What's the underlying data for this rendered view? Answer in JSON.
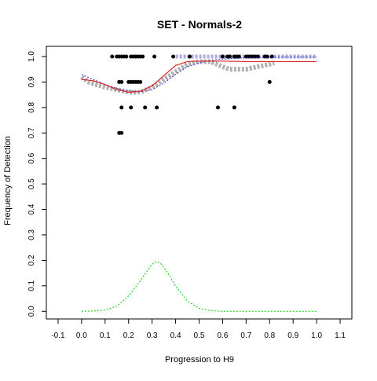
{
  "chart_data": {
    "type": "scatter",
    "title": "SET - Normals-2",
    "xlabel": "Progression to H9",
    "ylabel": "Frequency of Detection",
    "xlim": [
      -0.15,
      1.15
    ],
    "ylim": [
      -0.03,
      1.04
    ],
    "xticks": [
      "-0.1",
      "0.0",
      "0.1",
      "0.2",
      "0.3",
      "0.4",
      "0.5",
      "0.6",
      "0.7",
      "0.8",
      "0.9",
      "1.0",
      "1.1"
    ],
    "yticks": [
      "0.0",
      "0.1",
      "0.2",
      "0.3",
      "0.4",
      "0.5",
      "0.6",
      "0.7",
      "0.8",
      "0.9",
      "1.0"
    ],
    "grid": false,
    "colors": {
      "points": "#000000",
      "red_curve": "#dd2222",
      "blue_curve": "#3333cc",
      "green_curve": "#00cc00",
      "gray_band": "#b0b0b0",
      "lavender_band": "#aaaadd"
    },
    "series": [
      {
        "kind": "points",
        "x": [
          0.13,
          0.15,
          0.16,
          0.17,
          0.18,
          0.19,
          0.21,
          0.22,
          0.23,
          0.24,
          0.25,
          0.26,
          0.31,
          0.39,
          0.46,
          0.6,
          0.62,
          0.63,
          0.65,
          0.66,
          0.67,
          0.7,
          0.71,
          0.72,
          0.73,
          0.74,
          0.75,
          0.78,
          0.79,
          0.81,
          0.16,
          0.17,
          0.2,
          0.21,
          0.22,
          0.23,
          0.24,
          0.25,
          0.17,
          0.21,
          0.27,
          0.32,
          0.58,
          0.65,
          0.16,
          0.17
        ],
        "y": [
          1.0,
          1.0,
          1.0,
          1.0,
          1.0,
          1.0,
          1.0,
          1.0,
          1.0,
          1.0,
          1.0,
          1.0,
          1.0,
          1.0,
          1.0,
          1.0,
          1.0,
          1.0,
          1.0,
          1.0,
          1.0,
          1.0,
          1.0,
          1.0,
          1.0,
          1.0,
          1.0,
          1.0,
          1.0,
          1.0,
          0.9,
          0.9,
          0.9,
          0.9,
          0.9,
          0.9,
          0.9,
          0.9,
          0.8,
          0.8,
          0.8,
          0.8,
          0.8,
          0.8,
          0.7,
          0.7
        ]
      },
      {
        "kind": "outlier",
        "x": [
          0.8
        ],
        "y": [
          0.9
        ]
      },
      {
        "kind": "red_curve",
        "x": [
          0.0,
          0.05,
          0.1,
          0.15,
          0.2,
          0.25,
          0.3,
          0.35,
          0.4,
          0.45,
          0.5,
          0.55,
          0.6,
          0.7,
          0.8,
          0.9,
          1.0
        ],
        "y": [
          0.91,
          0.905,
          0.89,
          0.87,
          0.86,
          0.863,
          0.885,
          0.925,
          0.965,
          0.98,
          0.982,
          0.982,
          0.982,
          0.98,
          0.98,
          0.98,
          0.98
        ]
      },
      {
        "kind": "blue_curve",
        "x": [
          0.0,
          0.05,
          0.1,
          0.15,
          0.2,
          0.25,
          0.3,
          0.35,
          0.4,
          0.45,
          0.5,
          0.55,
          0.6,
          0.7,
          0.8,
          0.9,
          1.0
        ],
        "y": [
          0.93,
          0.91,
          0.89,
          0.875,
          0.865,
          0.862,
          0.87,
          0.895,
          0.93,
          0.96,
          0.975,
          0.985,
          0.99,
          0.995,
          0.997,
          0.998,
          0.998
        ]
      },
      {
        "kind": "gray_band",
        "x": [
          0.0,
          0.03,
          0.06,
          0.1,
          0.15,
          0.2,
          0.25,
          0.3,
          0.35,
          0.4,
          0.45,
          0.5,
          0.55,
          0.6,
          0.63,
          0.66,
          0.7,
          0.75,
          0.8,
          0.82
        ],
        "y": [
          0.92,
          0.9,
          0.89,
          0.88,
          0.87,
          0.86,
          0.86,
          0.88,
          0.91,
          0.94,
          0.97,
          0.98,
          0.98,
          0.96,
          0.95,
          0.95,
          0.95,
          0.96,
          0.97,
          0.975
        ]
      },
      {
        "kind": "lavender_band",
        "x": [
          0.4,
          0.45,
          0.5,
          0.55,
          0.6,
          0.65,
          0.7,
          0.75,
          0.8,
          0.85,
          0.9,
          0.95,
          1.0
        ],
        "y": [
          1.0,
          1.0,
          1.0,
          1.0,
          1.0,
          1.0,
          1.0,
          1.0,
          1.0,
          1.0,
          1.0,
          1.0,
          1.0
        ]
      },
      {
        "kind": "green_curve",
        "x": [
          0.0,
          0.05,
          0.1,
          0.15,
          0.2,
          0.25,
          0.28,
          0.3,
          0.32,
          0.34,
          0.36,
          0.4,
          0.45,
          0.5,
          0.55,
          0.6,
          0.7,
          0.8,
          0.9,
          1.0
        ],
        "y": [
          0.0,
          0.001,
          0.005,
          0.02,
          0.06,
          0.12,
          0.16,
          0.185,
          0.195,
          0.185,
          0.16,
          0.1,
          0.04,
          0.012,
          0.003,
          0.0,
          0.0,
          0.0,
          0.0,
          0.0
        ]
      }
    ]
  }
}
